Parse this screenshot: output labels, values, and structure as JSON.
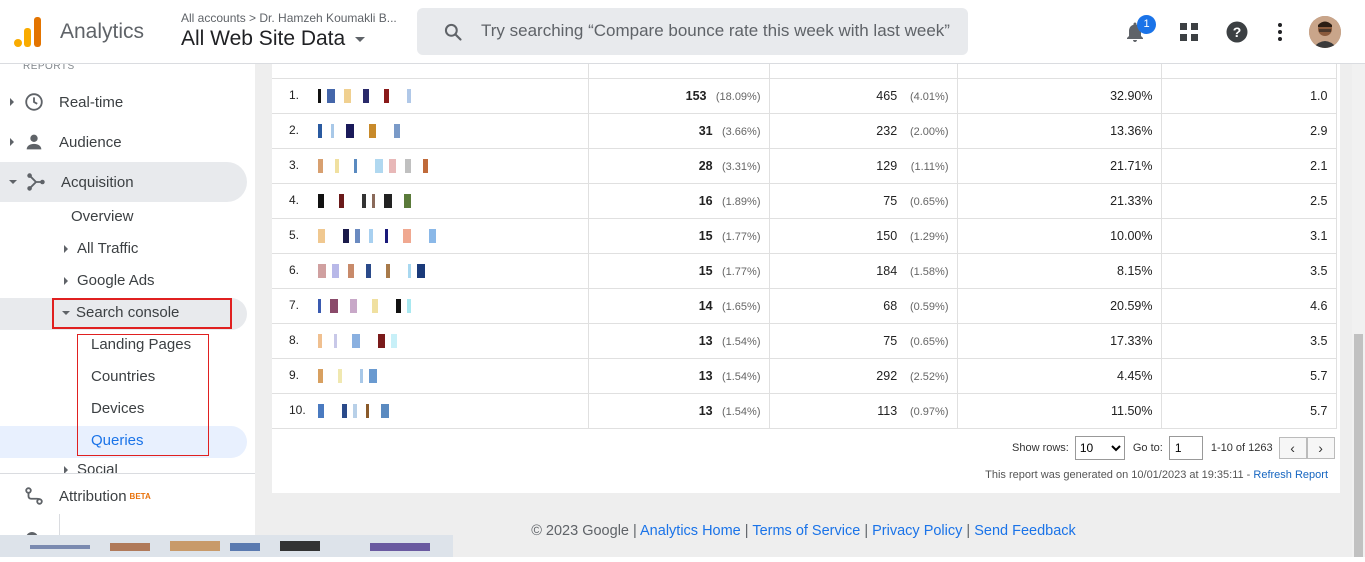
{
  "header": {
    "app_name": "Analytics",
    "account_breadcrumb": "All accounts  >  Dr. Hamzeh Koumakli B...",
    "view_name": "All Web Site Data",
    "search_placeholder": "Try searching “Compare bounce rate this week with last week”",
    "notification_count": "1"
  },
  "sidebar": {
    "reports_label": "REPORTS",
    "realtime": "Real-time",
    "audience": "Audience",
    "acquisition": "Acquisition",
    "overview": "Overview",
    "all_traffic": "All Traffic",
    "google_ads": "Google Ads",
    "search_console": "Search console",
    "landing_pages": "Landing Pages",
    "countries": "Countries",
    "devices": "Devices",
    "queries": "Queries",
    "social": "Social",
    "attribution": "Attribution",
    "beta": "BETA"
  },
  "table": {
    "rows": [
      {
        "index": "1.",
        "clicks": "153",
        "clicks_pct": "(18.09%)",
        "impressions": "465",
        "impressions_pct": "(4.01%)",
        "ctr": "32.90%",
        "position": "1.0"
      },
      {
        "index": "2.",
        "clicks": "31",
        "clicks_pct": "(3.66%)",
        "impressions": "232",
        "impressions_pct": "(2.00%)",
        "ctr": "13.36%",
        "position": "2.9"
      },
      {
        "index": "3.",
        "clicks": "28",
        "clicks_pct": "(3.31%)",
        "impressions": "129",
        "impressions_pct": "(1.11%)",
        "ctr": "21.71%",
        "position": "2.1"
      },
      {
        "index": "4.",
        "clicks": "16",
        "clicks_pct": "(1.89%)",
        "impressions": "75",
        "impressions_pct": "(0.65%)",
        "ctr": "21.33%",
        "position": "2.5"
      },
      {
        "index": "5.",
        "clicks": "15",
        "clicks_pct": "(1.77%)",
        "impressions": "150",
        "impressions_pct": "(1.29%)",
        "ctr": "10.00%",
        "position": "3.1"
      },
      {
        "index": "6.",
        "clicks": "15",
        "clicks_pct": "(1.77%)",
        "impressions": "184",
        "impressions_pct": "(1.58%)",
        "ctr": "8.15%",
        "position": "3.5"
      },
      {
        "index": "7.",
        "clicks": "14",
        "clicks_pct": "(1.65%)",
        "impressions": "68",
        "impressions_pct": "(0.59%)",
        "ctr": "20.59%",
        "position": "4.6"
      },
      {
        "index": "8.",
        "clicks": "13",
        "clicks_pct": "(1.54%)",
        "impressions": "75",
        "impressions_pct": "(0.65%)",
        "ctr": "17.33%",
        "position": "3.5"
      },
      {
        "index": "9.",
        "clicks": "13",
        "clicks_pct": "(1.54%)",
        "impressions": "292",
        "impressions_pct": "(2.52%)",
        "ctr": "4.45%",
        "position": "5.7"
      },
      {
        "index": "10.",
        "clicks": "13",
        "clicks_pct": "(1.54%)",
        "impressions": "113",
        "impressions_pct": "(0.97%)",
        "ctr": "11.50%",
        "position": "5.7"
      }
    ]
  },
  "pager": {
    "show_rows_label": "Show rows:",
    "show_rows_value": "10",
    "goto_label": "Go to:",
    "goto_value": "1",
    "range": "1-10 of 1263",
    "prev": "‹",
    "next": "›"
  },
  "report_note": {
    "text": "This report was generated on 10/01/2023 at 19:35:11 - ",
    "refresh": "Refresh Report"
  },
  "footer": {
    "copyright": "© 2023 Google",
    "sep": " | ",
    "analytics_home": "Analytics Home",
    "terms": "Terms of Service",
    "privacy": "Privacy Policy",
    "feedback": "Send Feedback"
  },
  "colors": {
    "accent": "#1a73e8",
    "highlight_box": "#e02020",
    "selected_bg": "#e8f0fe"
  }
}
